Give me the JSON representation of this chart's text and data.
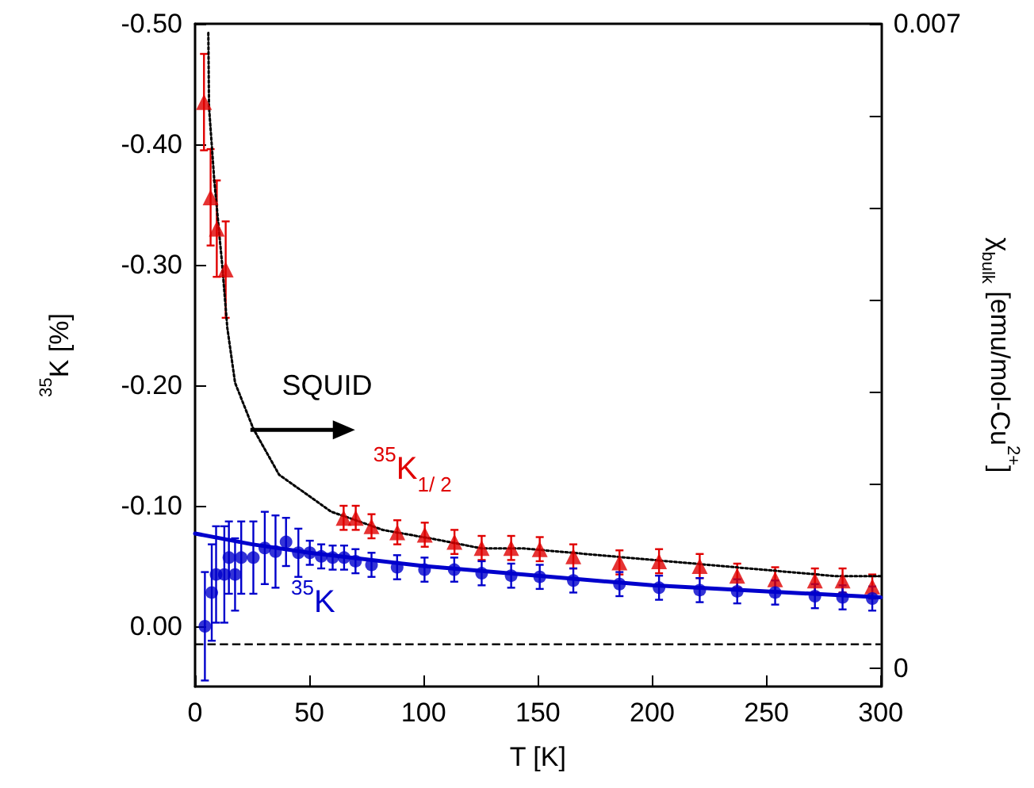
{
  "chart_data": {
    "type": "scatter",
    "xlabel": "T [K]",
    "ylabel": "$^{35}$K [%]",
    "y2label": "χ$_{bulk}$ [emu/mol-Cu$^{2+}$]",
    "xlim": [
      0,
      300
    ],
    "xticks": [
      0,
      50,
      100,
      150,
      200,
      250,
      300
    ],
    "ylim": [
      0.05,
      -0.5
    ],
    "yticks": [
      {
        "value": 0,
        "label": "0.00"
      },
      {
        "value": -0.1,
        "label": "-0.10"
      },
      {
        "value": -0.2,
        "label": "-0.20"
      },
      {
        "value": -0.3,
        "label": "-0.30"
      },
      {
        "value": -0.4,
        "label": "-0.40"
      },
      {
        "value": -0.5,
        "label": "-0.50"
      }
    ],
    "y2lim": [
      -0.0002,
      0.007
    ],
    "y2ticks": [
      0,
      {
        "value": 0.001,
        "label": null
      },
      {
        "value": 0.002,
        "label": null
      },
      {
        "value": 0.003,
        "label": null
      },
      {
        "value": 0.004,
        "label": null
      },
      {
        "value": 0.005,
        "label": null
      },
      {
        "value": 0.006,
        "label": null
      },
      0.007
    ],
    "annotations": [
      "SQUID"
    ],
    "ref_lines": [
      {
        "axis": "y",
        "value": 0.015,
        "color": "#000000",
        "line_style": "dashed"
      }
    ],
    "grid": false,
    "series": [
      {
        "name": "$^{35}$K$_{1/ 2}$",
        "marker": "triangle",
        "color": "#e00000",
        "x": [
          3.9,
          6.8,
          9.5,
          13.4,
          65,
          70.3,
          77.2,
          88.5,
          100.5,
          113.5,
          125.4,
          138.3,
          150.8,
          165.5,
          185.7,
          203,
          220.8,
          237.2,
          253.8,
          271.2,
          283.3,
          296.3
        ],
        "values": [
          -0.435,
          -0.356,
          -0.33,
          -0.296,
          -0.09,
          -0.09,
          -0.083,
          -0.078,
          -0.076,
          -0.07,
          -0.065,
          -0.065,
          -0.064,
          -0.058,
          -0.053,
          -0.054,
          -0.05,
          -0.042,
          -0.039,
          -0.038,
          -0.038,
          -0.033
        ],
        "errors": [
          0.04,
          0.04,
          0.04,
          0.04,
          0.01,
          0.01,
          0.01,
          0.01,
          0.01,
          0.01,
          0.01,
          0.01,
          0.01,
          0.01,
          0.01,
          0.01,
          0.01,
          0.01,
          0.01,
          0.01,
          0.01,
          0.01
        ]
      },
      {
        "name": "$^{35}$K",
        "marker": "circle",
        "color": "#0000cc",
        "x": [
          4.3,
          7.3,
          9.2,
          12.8,
          17.5,
          14.8,
          20.2,
          25.5,
          30.5,
          35.2,
          39.8,
          45.2,
          50.2,
          55.2,
          60.2,
          65.2,
          70.2,
          77.2,
          88.4,
          100.4,
          113.4,
          125.4,
          138.3,
          150.8,
          165.5,
          185.7,
          203,
          220.8,
          237.2,
          253.8,
          271.2,
          283.3,
          296.3
        ],
        "values": [
          0,
          -0.028,
          -0.043,
          -0.043,
          -0.043,
          -0.057,
          -0.057,
          -0.057,
          -0.065,
          -0.062,
          -0.07,
          -0.061,
          -0.061,
          -0.058,
          -0.057,
          -0.057,
          -0.054,
          -0.051,
          -0.049,
          -0.047,
          -0.047,
          -0.044,
          -0.042,
          -0.041,
          -0.038,
          -0.035,
          -0.032,
          -0.03,
          -0.029,
          -0.028,
          -0.025,
          -0.024,
          -0.023
        ],
        "errors": [
          0.045,
          0.04,
          0.04,
          0.04,
          0.03,
          0.03,
          0.03,
          0.03,
          0.03,
          0.03,
          0.02,
          0.02,
          0.01,
          0.01,
          0.01,
          0.01,
          0.01,
          0.01,
          0.01,
          0.01,
          0.01,
          0.01,
          0.01,
          0.01,
          0.01,
          0.01,
          0.01,
          0.01,
          0.01,
          0.01,
          0.01,
          0.01,
          0.01
        ]
      },
      {
        "type": "line",
        "marker": "none",
        "line_style": "solid",
        "color": "#0000cc",
        "x": [
          0,
          25,
          50,
          100,
          150,
          200,
          250,
          300
        ],
        "values": [
          -0.077,
          -0.068,
          -0.061,
          -0.05,
          -0.042,
          -0.034,
          -0.029,
          -0.024
        ]
      },
      {
        "type": "line",
        "axis": "y2",
        "marker": "none",
        "line_style": "dotted",
        "color": "#000000",
        "x": [
          5.8,
          6.1,
          8.4,
          11.8,
          14.1,
          17.5,
          25.5,
          36.8,
          48.2,
          59.5,
          71,
          82.3,
          105,
          125.5,
          143.8,
          189,
          234.5,
          280,
          300
        ],
        "values": [
          0.0069,
          0.0061,
          0.0053,
          0.0044,
          0.0037,
          0.0031,
          0.0026,
          0.0021,
          0.0019,
          0.0017,
          0.0016,
          0.0015,
          0.0014,
          0.0013,
          0.0013,
          0.0012,
          0.0011,
          0.001,
          0.001
        ]
      }
    ]
  }
}
